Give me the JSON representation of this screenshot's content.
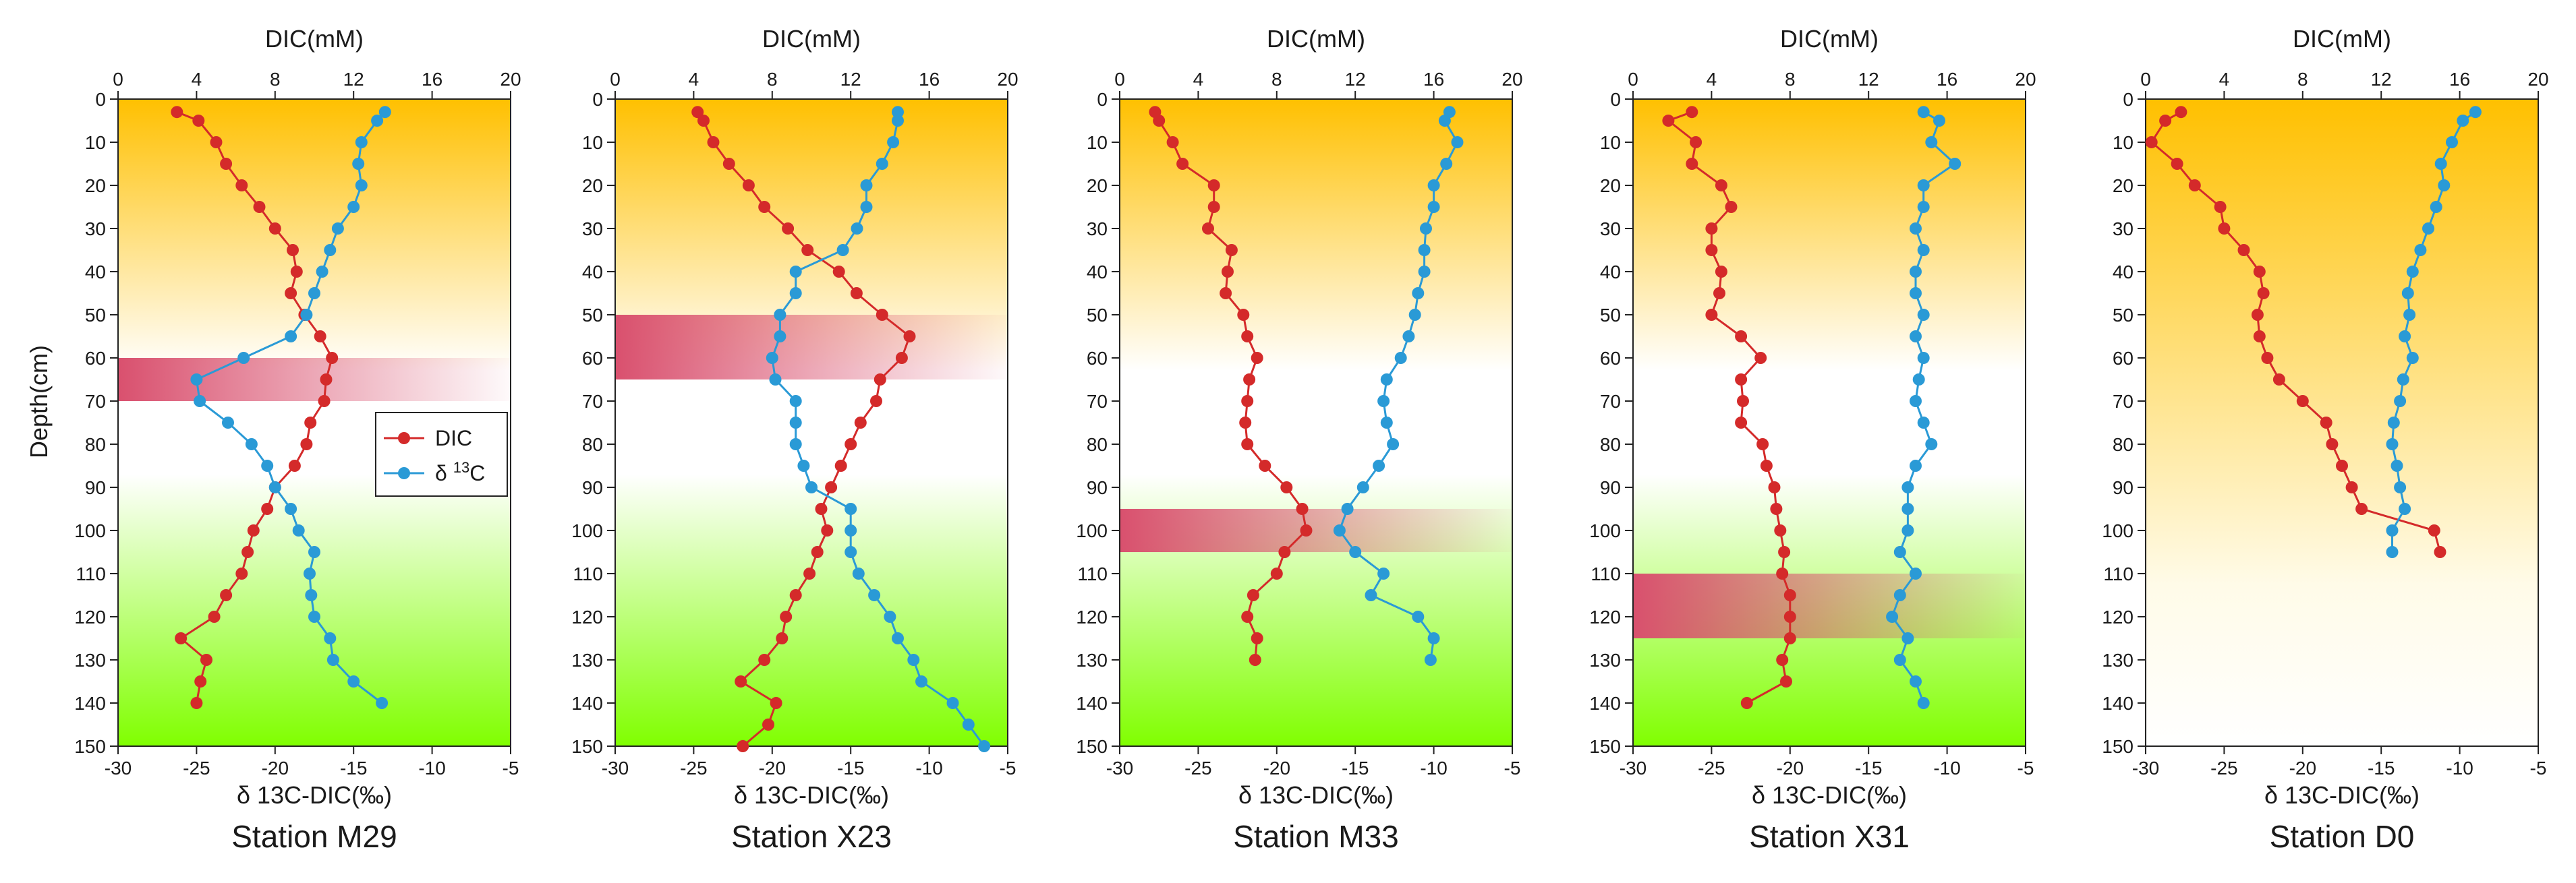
{
  "figure": {
    "ylabel": "Depth(cm)",
    "top_axis_label": "DIC(mM)",
    "bottom_axis_label": "δ 13C-DIC(‰)",
    "top_range": [
      0,
      20
    ],
    "top_ticks": [
      "0",
      "4",
      "8",
      "12",
      "16",
      "20"
    ],
    "bottom_range": [
      -30,
      -5
    ],
    "bottom_ticks": [
      "-30",
      "-25",
      "-20",
      "-15",
      "-10",
      "-5"
    ],
    "depth_range": [
      0,
      150
    ],
    "depth_ticks": [
      "0",
      "10",
      "20",
      "30",
      "40",
      "50",
      "60",
      "70",
      "80",
      "90",
      "100",
      "110",
      "120",
      "130",
      "140",
      "150"
    ],
    "legend": {
      "dic_label": "DIC",
      "d13c_prefix": "δ ",
      "d13c_sup": "13",
      "d13c_suffix": "C",
      "position": "middle-right of first panel"
    },
    "colors": {
      "dic": "#d42a2a",
      "d13c": "#2a9ad6",
      "background_top": "#ffc000",
      "background_green": "#80ff00",
      "band": "#d9506e"
    }
  },
  "chart_data": [
    {
      "type": "line",
      "title": "Station M29",
      "background": "orange-to-green",
      "band_depth": [
        60,
        70
      ],
      "series": [
        {
          "name": "DIC",
          "axis": "top",
          "unit": "mM",
          "depth": [
            3,
            5,
            10,
            15,
            20,
            25,
            30,
            35,
            40,
            45,
            50,
            55,
            60,
            65,
            70,
            75,
            80,
            85,
            90,
            95,
            100,
            105,
            110,
            115,
            120,
            125,
            130,
            135,
            140
          ],
          "values": [
            3.0,
            4.1,
            5.0,
            5.5,
            6.3,
            7.2,
            8.0,
            8.9,
            9.1,
            8.8,
            9.5,
            10.3,
            10.9,
            10.6,
            10.5,
            9.8,
            9.6,
            9.0,
            8.0,
            7.6,
            6.9,
            6.6,
            6.3,
            5.5,
            4.9,
            3.2,
            4.5,
            4.2,
            4.0
          ]
        },
        {
          "name": "δ13C",
          "axis": "bottom",
          "unit": "‰",
          "depth": [
            3,
            5,
            10,
            15,
            20,
            25,
            30,
            35,
            40,
            45,
            50,
            55,
            60,
            65,
            70,
            75,
            80,
            85,
            90,
            95,
            100,
            105,
            110,
            115,
            120,
            125,
            130,
            135,
            140
          ],
          "values": [
            -13.0,
            -13.5,
            -14.5,
            -14.7,
            -14.5,
            -15.0,
            -16.0,
            -16.5,
            -17.0,
            -17.5,
            -18.0,
            -19.0,
            -22.0,
            -25.0,
            -24.8,
            -23.0,
            -21.5,
            -20.5,
            -20.0,
            -19.0,
            -18.5,
            -17.5,
            -17.8,
            -17.7,
            -17.5,
            -16.5,
            -16.3,
            -15.0,
            -13.2
          ]
        }
      ]
    },
    {
      "type": "line",
      "title": "Station X23",
      "background": "orange-to-green",
      "band_depth": [
        50,
        65
      ],
      "series": [
        {
          "name": "DIC",
          "axis": "top",
          "unit": "mM",
          "depth": [
            3,
            5,
            10,
            15,
            20,
            25,
            30,
            35,
            40,
            45,
            50,
            55,
            60,
            65,
            70,
            75,
            80,
            85,
            90,
            95,
            100,
            105,
            110,
            115,
            120,
            125,
            130,
            135,
            140,
            145,
            150
          ],
          "values": [
            4.2,
            4.5,
            5.0,
            5.8,
            6.8,
            7.6,
            8.8,
            9.8,
            11.4,
            12.3,
            13.6,
            15.0,
            14.6,
            13.5,
            13.3,
            12.5,
            12.0,
            11.5,
            11.0,
            10.5,
            10.8,
            10.3,
            9.9,
            9.2,
            8.7,
            8.5,
            7.6,
            6.4,
            8.2,
            7.8,
            6.5
          ]
        },
        {
          "name": "δ13C",
          "axis": "bottom",
          "unit": "‰",
          "depth": [
            3,
            5,
            10,
            15,
            20,
            25,
            30,
            35,
            40,
            45,
            50,
            55,
            60,
            65,
            70,
            75,
            80,
            85,
            90,
            95,
            100,
            105,
            110,
            115,
            120,
            125,
            130,
            135,
            140,
            145,
            150
          ],
          "values": [
            -12.0,
            -12.0,
            -12.3,
            -13.0,
            -14.0,
            -14.0,
            -14.6,
            -15.5,
            -18.5,
            -18.5,
            -19.5,
            -19.5,
            -20.0,
            -19.8,
            -18.5,
            -18.5,
            -18.5,
            -18.0,
            -17.5,
            -15.0,
            -15.0,
            -15.0,
            -14.5,
            -13.5,
            -12.5,
            -12.0,
            -11.0,
            -10.5,
            -8.5,
            -7.5,
            -6.5
          ]
        }
      ]
    },
    {
      "type": "line",
      "title": "Station M33",
      "background": "orange-to-green",
      "band_depth": [
        95,
        105
      ],
      "series": [
        {
          "name": "DIC",
          "axis": "top",
          "unit": "mM",
          "depth": [
            3,
            5,
            10,
            15,
            20,
            25,
            30,
            35,
            40,
            45,
            50,
            55,
            60,
            65,
            70,
            75,
            80,
            85,
            90,
            95,
            100,
            105,
            110,
            115,
            120,
            125,
            130
          ],
          "values": [
            1.8,
            2.0,
            2.7,
            3.2,
            4.8,
            4.8,
            4.5,
            5.7,
            5.5,
            5.4,
            6.3,
            6.5,
            7.0,
            6.6,
            6.5,
            6.4,
            6.5,
            7.4,
            8.5,
            9.3,
            9.5,
            8.4,
            8.0,
            6.8,
            6.5,
            7.0,
            6.9
          ]
        },
        {
          "name": "δ13C",
          "axis": "bottom",
          "unit": "‰",
          "depth": [
            3,
            5,
            10,
            15,
            20,
            25,
            30,
            35,
            40,
            45,
            50,
            55,
            60,
            65,
            70,
            75,
            80,
            85,
            90,
            95,
            100,
            105,
            110,
            115,
            120,
            125,
            130
          ],
          "values": [
            -9.0,
            -9.3,
            -8.5,
            -9.2,
            -10.0,
            -10.0,
            -10.5,
            -10.6,
            -10.6,
            -11.0,
            -11.2,
            -11.6,
            -12.1,
            -13.0,
            -13.2,
            -13.0,
            -12.6,
            -13.5,
            -14.5,
            -15.5,
            -16.0,
            -15.0,
            -13.2,
            -14.0,
            -11.0,
            -10.0,
            -10.2
          ]
        }
      ]
    },
    {
      "type": "line",
      "title": "Station X31",
      "background": "orange-to-green",
      "band_depth": [
        110,
        125
      ],
      "series": [
        {
          "name": "DIC",
          "axis": "top",
          "unit": "mM",
          "depth": [
            3,
            5,
            10,
            15,
            20,
            25,
            30,
            35,
            40,
            45,
            50,
            55,
            60,
            65,
            70,
            75,
            80,
            85,
            90,
            95,
            100,
            105,
            110,
            115,
            120,
            125,
            130,
            135,
            140
          ],
          "values": [
            3.0,
            1.8,
            3.2,
            3.0,
            4.5,
            5.0,
            4.0,
            4.0,
            4.5,
            4.4,
            4.0,
            5.5,
            6.5,
            5.5,
            5.6,
            5.5,
            6.6,
            6.8,
            7.2,
            7.3,
            7.5,
            7.7,
            7.6,
            8.0,
            8.0,
            8.0,
            7.6,
            7.8,
            5.8
          ]
        },
        {
          "name": "δ13C",
          "axis": "bottom",
          "unit": "‰",
          "depth": [
            3,
            5,
            10,
            15,
            20,
            25,
            30,
            35,
            40,
            45,
            50,
            55,
            60,
            65,
            70,
            75,
            80,
            85,
            90,
            95,
            100,
            105,
            110,
            115,
            120,
            125,
            130,
            135,
            140
          ],
          "values": [
            -11.5,
            -10.5,
            -11.0,
            -9.5,
            -11.5,
            -11.5,
            -12.0,
            -11.5,
            -12.0,
            -12.0,
            -11.5,
            -12.0,
            -11.5,
            -11.8,
            -12.0,
            -11.5,
            -11.0,
            -12.0,
            -12.5,
            -12.5,
            -12.5,
            -13.0,
            -12.0,
            -13.0,
            -13.5,
            -12.5,
            -13.0,
            -12.0,
            -11.5
          ]
        }
      ]
    },
    {
      "type": "line",
      "title": "Station D0",
      "background": "orange-to-white",
      "band_depth": [],
      "series": [
        {
          "name": "DIC",
          "axis": "top",
          "unit": "mM",
          "depth": [
            3,
            5,
            10,
            15,
            20,
            25,
            30,
            35,
            40,
            45,
            50,
            55,
            60,
            65,
            70,
            75,
            80,
            85,
            90,
            95,
            100,
            105
          ],
          "values": [
            1.8,
            1.0,
            0.3,
            1.6,
            2.5,
            3.8,
            4.0,
            5.0,
            5.8,
            6.0,
            5.7,
            5.8,
            6.2,
            6.8,
            8.0,
            9.2,
            9.5,
            10.0,
            10.5,
            11.0,
            14.7,
            15.0
          ]
        },
        {
          "name": "δ13C",
          "axis": "bottom",
          "unit": "‰",
          "depth": [
            3,
            5,
            10,
            15,
            20,
            25,
            30,
            35,
            40,
            45,
            50,
            55,
            60,
            65,
            70,
            75,
            80,
            85,
            90,
            95,
            100,
            105
          ],
          "values": [
            -9.0,
            -9.8,
            -10.5,
            -11.2,
            -11.0,
            -11.5,
            -12.0,
            -12.5,
            -13.0,
            -13.3,
            -13.2,
            -13.5,
            -13.0,
            -13.6,
            -13.8,
            -14.2,
            -14.3,
            -14.0,
            -13.8,
            -13.5,
            -14.3,
            -14.3
          ]
        }
      ]
    }
  ]
}
